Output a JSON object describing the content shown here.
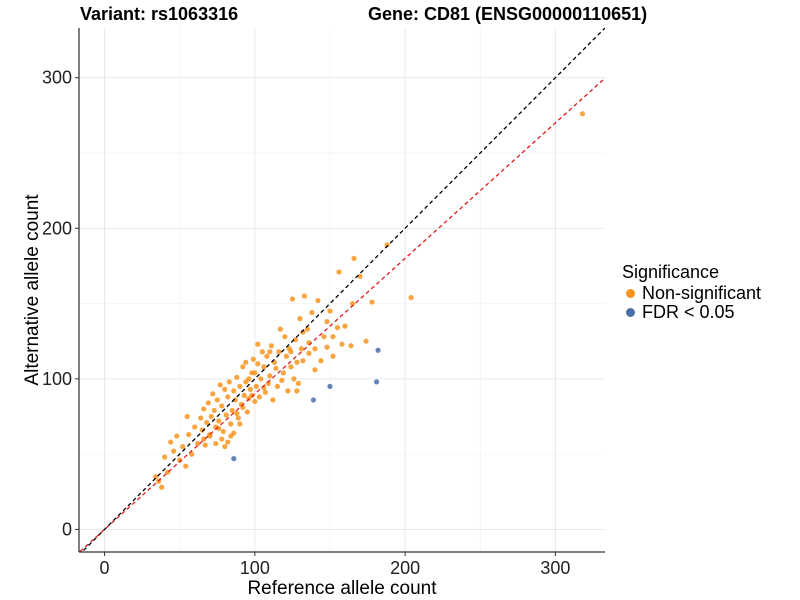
{
  "header": {
    "variant_title": "Variant: rs1063316",
    "gene_title": "Gene: CD81 (ENSG00000110651)"
  },
  "legend": {
    "title": "Significance",
    "items": [
      {
        "label": "Non-significant",
        "color": "#f7941d"
      },
      {
        "label": "FDR < 0.05",
        "color": "#4a6fa5"
      }
    ]
  },
  "chart_data": {
    "type": "scatter",
    "title": "Variant: rs1063316    Gene: CD81 (ENSG00000110651)",
    "xlabel": "Reference allele count",
    "ylabel": "Alternative allele count",
    "xlim": [
      -17,
      333
    ],
    "ylim": [
      -15,
      333
    ],
    "xticks": [
      0,
      100,
      200,
      300
    ],
    "yticks": [
      0,
      100,
      200,
      300
    ],
    "grid": true,
    "legend_position": "right",
    "reference_lines": [
      {
        "name": "identity",
        "slope": 1.0,
        "intercept": 0,
        "color": "#000000",
        "style": "dashed"
      },
      {
        "name": "fitted",
        "slope": 0.9,
        "intercept": 0,
        "color": "#e41a1c",
        "style": "dashed"
      }
    ],
    "series": [
      {
        "name": "Non-significant",
        "color": "#f7941d",
        "points": [
          [
            318,
            276
          ],
          [
            204,
            154
          ],
          [
            188,
            189
          ],
          [
            178,
            151
          ],
          [
            174,
            125
          ],
          [
            170,
            168
          ],
          [
            166,
            180
          ],
          [
            165,
            150
          ],
          [
            164,
            122
          ],
          [
            158,
            123
          ],
          [
            156,
            171
          ],
          [
            155,
            134
          ],
          [
            152,
            115
          ],
          [
            150,
            145
          ],
          [
            148,
            138
          ],
          [
            146,
            128
          ],
          [
            142,
            152
          ],
          [
            140,
            120
          ],
          [
            138,
            144
          ],
          [
            136,
            117
          ],
          [
            135,
            133
          ],
          [
            133,
            155
          ],
          [
            132,
            131
          ],
          [
            131,
            120
          ],
          [
            130,
            140
          ],
          [
            129,
            97
          ],
          [
            128,
            111
          ],
          [
            127,
            126
          ],
          [
            126,
            100
          ],
          [
            125,
            153
          ],
          [
            124,
            108
          ],
          [
            123,
            120
          ],
          [
            122,
            92
          ],
          [
            121,
            115
          ],
          [
            120,
            128
          ],
          [
            119,
            104
          ],
          [
            118,
            99
          ],
          [
            117,
            133
          ],
          [
            116,
            118
          ],
          [
            115,
            95
          ],
          [
            114,
            107
          ],
          [
            113,
            111
          ],
          [
            112,
            86
          ],
          [
            111,
            122
          ],
          [
            110,
            102
          ],
          [
            109,
            97
          ],
          [
            108,
            115
          ],
          [
            107,
            91
          ],
          [
            106,
            108
          ],
          [
            105,
            118
          ],
          [
            104,
            100
          ],
          [
            103,
            88
          ],
          [
            102,
            110
          ],
          [
            101,
            95
          ],
          [
            100,
            85
          ],
          [
            99,
            113
          ],
          [
            98,
            104
          ],
          [
            97,
            93
          ],
          [
            96,
            100
          ],
          [
            95,
            78
          ],
          [
            94,
            98
          ],
          [
            93,
            89
          ],
          [
            92,
            108
          ],
          [
            91,
            83
          ],
          [
            90,
            95
          ],
          [
            89,
            74
          ],
          [
            88,
            101
          ],
          [
            87,
            86
          ],
          [
            86,
            92
          ],
          [
            85,
            79
          ],
          [
            84,
            70
          ],
          [
            83,
            98
          ],
          [
            82,
            88
          ],
          [
            81,
            76
          ],
          [
            80,
            93
          ],
          [
            79,
            65
          ],
          [
            78,
            82
          ],
          [
            77,
            96
          ],
          [
            76,
            72
          ],
          [
            75,
            86
          ],
          [
            74,
            68
          ],
          [
            73,
            79
          ],
          [
            72,
            90
          ],
          [
            71,
            75
          ],
          [
            70,
            62
          ],
          [
            69,
            84
          ],
          [
            68,
            71
          ],
          [
            67,
            56
          ],
          [
            66,
            80
          ],
          [
            65,
            66
          ],
          [
            64,
            74
          ],
          [
            62,
            57
          ],
          [
            60,
            68
          ],
          [
            58,
            50
          ],
          [
            56,
            63
          ],
          [
            55,
            75
          ],
          [
            54,
            42
          ],
          [
            52,
            55
          ],
          [
            50,
            46
          ],
          [
            48,
            62
          ],
          [
            46,
            52
          ],
          [
            44,
            58
          ],
          [
            42,
            38
          ],
          [
            40,
            48
          ],
          [
            38,
            28
          ],
          [
            36,
            32
          ],
          [
            34,
            35
          ],
          [
            110,
            118
          ],
          [
            106,
            94
          ],
          [
            102,
            123
          ],
          [
            98,
            89
          ],
          [
            94,
            111
          ],
          [
            90,
            70
          ],
          [
            86,
            64
          ],
          [
            82,
            58
          ],
          [
            78,
            60
          ],
          [
            74,
            57
          ],
          [
            70,
            63
          ],
          [
            66,
            60
          ],
          [
            100,
            104
          ],
          [
            96,
            87
          ],
          [
            92,
            81
          ],
          [
            88,
            77
          ],
          [
            84,
            62
          ],
          [
            80,
            55
          ],
          [
            76,
            67
          ],
          [
            124,
            118
          ],
          [
            128,
            92
          ],
          [
            132,
            112
          ],
          [
            136,
            124
          ],
          [
            140,
            106
          ],
          [
            144,
            112
          ],
          [
            148,
            121
          ],
          [
            152,
            128
          ],
          [
            160,
            135
          ]
        ]
      },
      {
        "name": "FDR < 0.05",
        "color": "#4a6fa5",
        "points": [
          [
            86,
            47
          ],
          [
            139,
            86
          ],
          [
            150,
            95
          ],
          [
            181,
            98
          ],
          [
            182,
            119
          ]
        ]
      }
    ]
  }
}
